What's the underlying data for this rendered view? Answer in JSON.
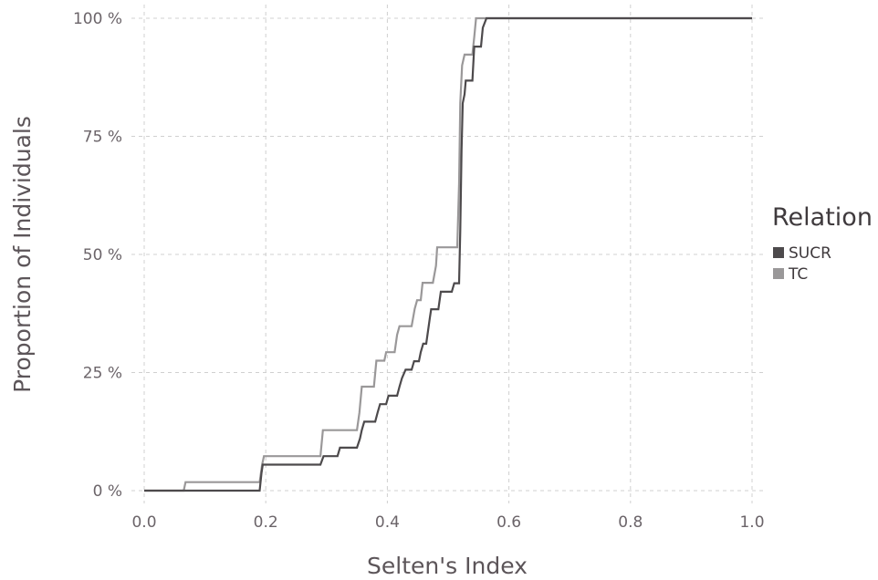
{
  "chart_data": {
    "type": "line",
    "step": true,
    "xlabel": "Selten's Index",
    "ylabel": "Proportion of Individuals",
    "xlim": [
      0,
      1
    ],
    "ylim": [
      0,
      1
    ],
    "x_ticks": [
      "0.0",
      "0.2",
      "0.4",
      "0.6",
      "0.8",
      "1.0"
    ],
    "y_ticks": [
      "0 %",
      "25 %",
      "50 %",
      "75 %",
      "100 %"
    ],
    "grid": true,
    "legend": {
      "title": "Relation",
      "placement": "right"
    },
    "series": [
      {
        "name": "SUCR",
        "color": "#4d4a4c",
        "points": [
          [
            0.0,
            0.0
          ],
          [
            0.19,
            0.0
          ],
          [
            0.193,
            0.037
          ],
          [
            0.195,
            0.055
          ],
          [
            0.29,
            0.055
          ],
          [
            0.295,
            0.073
          ],
          [
            0.318,
            0.073
          ],
          [
            0.322,
            0.091
          ],
          [
            0.35,
            0.091
          ],
          [
            0.355,
            0.11
          ],
          [
            0.358,
            0.128
          ],
          [
            0.362,
            0.146
          ],
          [
            0.38,
            0.146
          ],
          [
            0.384,
            0.165
          ],
          [
            0.388,
            0.183
          ],
          [
            0.398,
            0.183
          ],
          [
            0.402,
            0.201
          ],
          [
            0.416,
            0.201
          ],
          [
            0.42,
            0.22
          ],
          [
            0.424,
            0.238
          ],
          [
            0.43,
            0.256
          ],
          [
            0.44,
            0.256
          ],
          [
            0.444,
            0.274
          ],
          [
            0.452,
            0.274
          ],
          [
            0.455,
            0.293
          ],
          [
            0.459,
            0.311
          ],
          [
            0.464,
            0.311
          ],
          [
            0.468,
            0.348
          ],
          [
            0.47,
            0.366
          ],
          [
            0.472,
            0.384
          ],
          [
            0.484,
            0.384
          ],
          [
            0.488,
            0.421
          ],
          [
            0.506,
            0.421
          ],
          [
            0.51,
            0.439
          ],
          [
            0.518,
            0.439
          ],
          [
            0.52,
            0.55
          ],
          [
            0.522,
            0.72
          ],
          [
            0.524,
            0.82
          ],
          [
            0.527,
            0.839
          ],
          [
            0.529,
            0.868
          ],
          [
            0.54,
            0.868
          ],
          [
            0.543,
            0.94
          ],
          [
            0.554,
            0.94
          ],
          [
            0.557,
            0.98
          ],
          [
            0.563,
            1.0
          ],
          [
            1.0,
            1.0
          ]
        ]
      },
      {
        "name": "TC",
        "color": "#9a9899",
        "points": [
          [
            0.0,
            0.0
          ],
          [
            0.065,
            0.0
          ],
          [
            0.068,
            0.018
          ],
          [
            0.19,
            0.018
          ],
          [
            0.194,
            0.055
          ],
          [
            0.197,
            0.073
          ],
          [
            0.29,
            0.073
          ],
          [
            0.294,
            0.128
          ],
          [
            0.35,
            0.128
          ],
          [
            0.354,
            0.165
          ],
          [
            0.358,
            0.22
          ],
          [
            0.378,
            0.22
          ],
          [
            0.382,
            0.275
          ],
          [
            0.395,
            0.275
          ],
          [
            0.398,
            0.293
          ],
          [
            0.412,
            0.293
          ],
          [
            0.416,
            0.33
          ],
          [
            0.42,
            0.348
          ],
          [
            0.44,
            0.348
          ],
          [
            0.445,
            0.385
          ],
          [
            0.449,
            0.403
          ],
          [
            0.455,
            0.403
          ],
          [
            0.458,
            0.44
          ],
          [
            0.475,
            0.44
          ],
          [
            0.48,
            0.476
          ],
          [
            0.482,
            0.515
          ],
          [
            0.515,
            0.515
          ],
          [
            0.518,
            0.65
          ],
          [
            0.52,
            0.82
          ],
          [
            0.523,
            0.9
          ],
          [
            0.527,
            0.923
          ],
          [
            0.54,
            0.923
          ],
          [
            0.543,
            0.96
          ],
          [
            0.546,
            1.0
          ],
          [
            1.0,
            1.0
          ]
        ]
      }
    ]
  }
}
